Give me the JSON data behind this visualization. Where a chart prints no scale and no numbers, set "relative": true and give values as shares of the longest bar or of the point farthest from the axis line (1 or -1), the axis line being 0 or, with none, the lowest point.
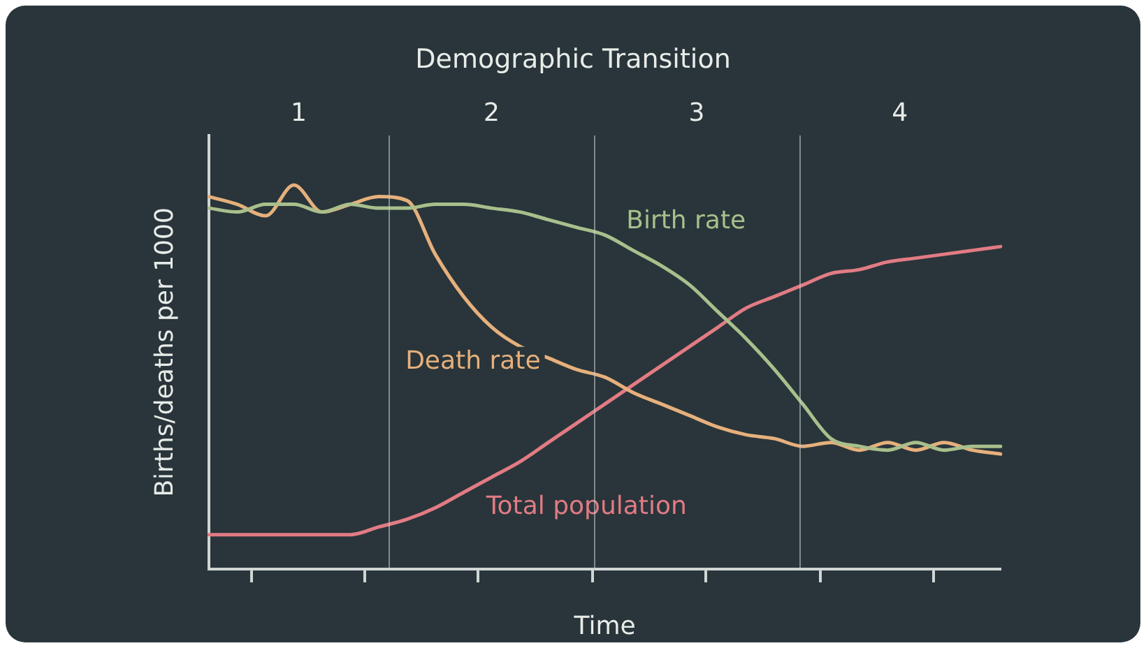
{
  "chart_data": {
    "type": "line",
    "title": "Demographic Transition",
    "xlabel": "Time",
    "ylabel": "Births/deaths per 1000",
    "relative": true,
    "categories": [
      null,
      null,
      null,
      null,
      null,
      null,
      null,
      null,
      null,
      null,
      null,
      null,
      null,
      null,
      null,
      null,
      null,
      null,
      null,
      null,
      null,
      null,
      null,
      null,
      null,
      null,
      null,
      null,
      null
    ],
    "annotations": [
      "1",
      "2",
      "3",
      "4"
    ],
    "grid": false,
    "legend": false,
    "marker": "none",
    "line_style": "solid",
    "series": [
      {
        "name": "Birth rate",
        "color": "#a9bf8c",
        "values": [
          0.94,
          0.93,
          0.95,
          0.95,
          0.93,
          0.95,
          0.94,
          0.94,
          0.95,
          0.95,
          0.94,
          0.93,
          0.91,
          0.89,
          0.87,
          0.83,
          0.79,
          0.74,
          0.67,
          0.6,
          0.52,
          0.43,
          0.34,
          0.32,
          0.31,
          0.33,
          0.31,
          0.32,
          0.32
        ]
      },
      {
        "name": "Death rate",
        "color": "#e6b07c",
        "values": [
          0.97,
          0.95,
          0.92,
          1,
          0.93,
          0.95,
          0.97,
          0.96,
          0.82,
          0.71,
          0.63,
          0.58,
          0.55,
          0.52,
          0.5,
          0.46,
          0.43,
          0.4,
          0.37,
          0.35,
          0.34,
          0.32,
          0.33,
          0.31,
          0.33,
          0.31,
          0.33,
          0.31,
          0.3
        ]
      },
      {
        "name": "Total population",
        "color": "#e27b84",
        "values": [
          0.09,
          0.09,
          0.09,
          0.09,
          0.09,
          0.09,
          0.11,
          0.13,
          0.16,
          0.2,
          0.24,
          0.28,
          0.33,
          0.38,
          0.43,
          0.48,
          0.53,
          0.58,
          0.63,
          0.68,
          0.71,
          0.74,
          0.77,
          0.78,
          0.8,
          0.81,
          0.82,
          0.83,
          0.84
        ]
      }
    ]
  }
}
